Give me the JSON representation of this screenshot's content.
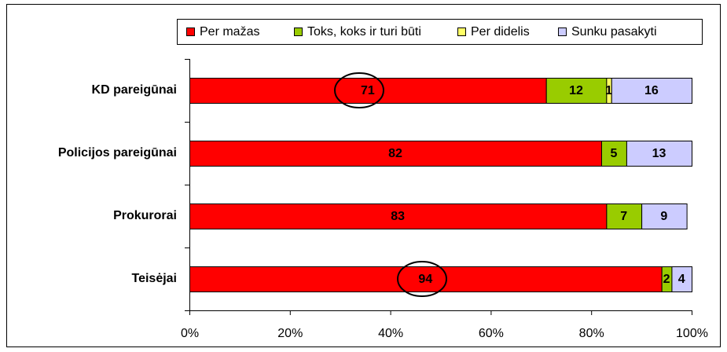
{
  "chart_data": {
    "type": "stacked-bar-horizontal",
    "categories": [
      "KD pareigūnai",
      "Policijos pareigūnai",
      "Prokurorai",
      "Teisėjai"
    ],
    "series": [
      {
        "name": "Per mažas",
        "color": "#ff0000",
        "values": [
          71,
          82,
          83,
          94
        ]
      },
      {
        "name": "Toks, koks ir turi būti",
        "color": "#99cc00",
        "values": [
          12,
          5,
          7,
          2
        ]
      },
      {
        "name": "Per didelis",
        "color": "#ffff66",
        "values": [
          1,
          null,
          null,
          null
        ]
      },
      {
        "name": "Sunku pasakyti",
        "color": "#ccccff",
        "values": [
          16,
          13,
          9,
          4
        ]
      }
    ],
    "xlim": [
      0,
      100
    ],
    "xticks": [
      {
        "value": 0,
        "label": "0%"
      },
      {
        "value": 20,
        "label": "20%"
      },
      {
        "value": 40,
        "label": "40%"
      },
      {
        "value": 60,
        "label": "60%"
      },
      {
        "value": 80,
        "label": "80%"
      },
      {
        "value": 100,
        "label": "100%"
      }
    ],
    "legend": "top"
  }
}
